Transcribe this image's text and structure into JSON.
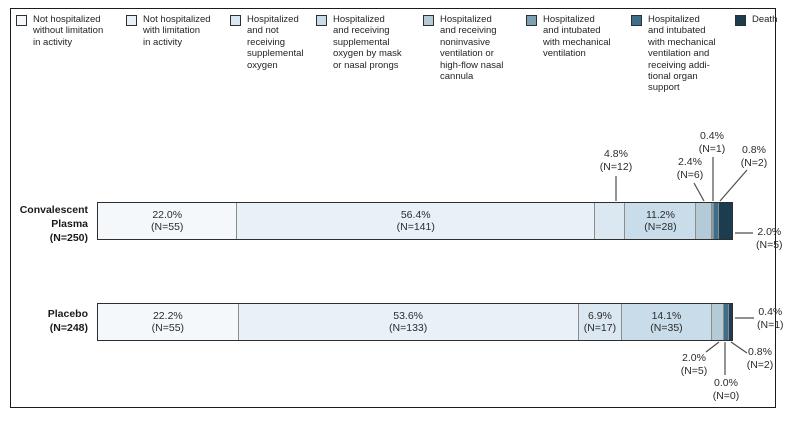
{
  "legend": {
    "items": [
      {
        "label_lines": [
          "Not hospitalized",
          "without limitation",
          "in activity"
        ],
        "color": "#f4f8fb"
      },
      {
        "label_lines": [
          "Not hospitalized",
          "with limitation",
          "in activity"
        ],
        "color": "#e8f1f8"
      },
      {
        "label_lines": [
          "Hospitalized",
          "and not",
          "receiving",
          "supplemental",
          "oxygen"
        ],
        "color": "#dbe8f2"
      },
      {
        "label_lines": [
          "Hospitalized",
          "and receiving",
          "supplemental",
          "oxygen by mask",
          "or nasal prongs"
        ],
        "color": "#c9dcea"
      },
      {
        "label_lines": [
          "Hospitalized",
          "and receiving",
          "noninvasive",
          "ventilation or",
          "high-flow nasal",
          "cannula"
        ],
        "color": "#b4cad7"
      },
      {
        "label_lines": [
          "Hospitalized",
          "and intubated",
          "with mechanical",
          "ventilation"
        ],
        "color": "#7da0b4"
      },
      {
        "label_lines": [
          "Hospitalized",
          "and intubated",
          "with mechanical",
          "ventilation and",
          "receiving addi-",
          "tional organ",
          "support"
        ],
        "color": "#3f6e8a"
      },
      {
        "label_lines": [
          "Death"
        ],
        "color": "#1c3c50"
      }
    ]
  },
  "figure": {
    "groups": [
      {
        "label_lines": [
          "Convalescent",
          "Plasma",
          "(N=250)"
        ]
      },
      {
        "label_lines": [
          "Placebo",
          "(N=248)"
        ]
      }
    ]
  },
  "callouts": {
    "plasma": {
      "p48": [
        "4.8%",
        "(N=12)"
      ],
      "p24": [
        "2.4%",
        "(N=6)"
      ],
      "p04": [
        "0.4%",
        "(N=1)"
      ],
      "p08": [
        "0.8%",
        "(N=2)"
      ],
      "p20": [
        "2.0%",
        "(N=5)"
      ]
    },
    "placebo": {
      "p04": [
        "0.4%",
        "(N=1)"
      ],
      "p08": [
        "0.8%",
        "(N=2)"
      ],
      "p00": [
        "0.0%",
        "(N=0)"
      ],
      "p20": [
        "2.0%",
        "(N=5)"
      ]
    }
  },
  "chart_data": {
    "type": "bar",
    "subtype": "horizontal_stacked_100pct",
    "title": "",
    "xlabel": "",
    "ylabel": "",
    "xlim": [
      0,
      100
    ],
    "legend_position": "top",
    "categories": [
      "Not hospitalized without limitation in activity",
      "Not hospitalized with limitation in activity",
      "Hospitalized and not receiving supplemental oxygen",
      "Hospitalized and receiving supplemental oxygen by mask or nasal prongs",
      "Hospitalized and receiving noninvasive ventilation or high-flow nasal cannula",
      "Hospitalized and intubated with mechanical ventilation",
      "Hospitalized and intubated with mechanical ventilation and receiving additional organ support",
      "Death"
    ],
    "colors": [
      "#f4f8fb",
      "#e8f1f8",
      "#dbe8f2",
      "#c9dcea",
      "#b4cad7",
      "#7da0b4",
      "#3f6e8a",
      "#1c3c50"
    ],
    "series": [
      {
        "name": "Convalescent Plasma",
        "total_n": 250,
        "values_pct": [
          22.0,
          56.4,
          4.8,
          11.2,
          2.4,
          0.4,
          0.8,
          2.0
        ],
        "values_n": [
          55,
          141,
          12,
          28,
          6,
          1,
          2,
          5
        ],
        "label_placement": [
          "inside",
          "inside",
          "callout",
          "inside",
          "callout",
          "callout",
          "callout",
          "callout"
        ]
      },
      {
        "name": "Placebo",
        "total_n": 248,
        "values_pct": [
          22.2,
          53.6,
          6.9,
          14.1,
          2.0,
          0.0,
          0.8,
          0.4
        ],
        "values_n": [
          55,
          133,
          17,
          35,
          5,
          0,
          2,
          1
        ],
        "label_placement": [
          "inside",
          "inside",
          "inside",
          "inside",
          "callout",
          "callout",
          "callout",
          "callout"
        ]
      }
    ]
  }
}
